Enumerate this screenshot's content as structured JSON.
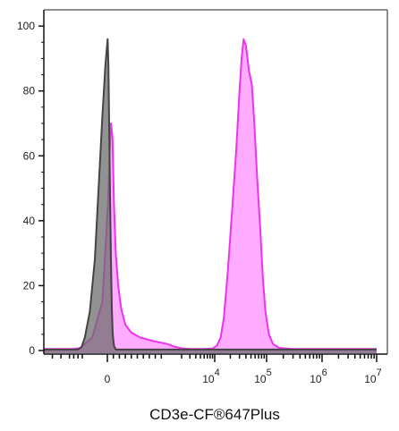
{
  "chart_data": {
    "type": "area",
    "xlabel": "CD3e-CF®647Plus",
    "ylabel": "",
    "title": "",
    "x_scale": "biexponential",
    "xlim": [
      -1000,
      10000000
    ],
    "ylim": [
      0,
      105
    ],
    "y_ticks": [
      0,
      20,
      40,
      60,
      80,
      100
    ],
    "y_tick_labels": [
      "0",
      "20",
      "40",
      "60",
      "80",
      "100"
    ],
    "x_ticks": [
      {
        "value": 0,
        "base": "0",
        "exp": ""
      },
      {
        "value": 10000,
        "base": "10",
        "exp": "4"
      },
      {
        "value": 100000,
        "base": "10",
        "exp": "5"
      },
      {
        "value": 1000000,
        "base": "10",
        "exp": "6"
      },
      {
        "value": 10000000,
        "base": "10",
        "exp": "7"
      }
    ],
    "series": [
      {
        "color": "#ee33ee",
        "fill": "#ff9cff",
        "points": [
          [
            -1000,
            0.5
          ],
          [
            -300,
            0.5
          ],
          [
            -150,
            0.8
          ],
          [
            -60,
            4
          ],
          [
            -20,
            15
          ],
          [
            10,
            45
          ],
          [
            40,
            62
          ],
          [
            60,
            70
          ],
          [
            85,
            66
          ],
          [
            110,
            45
          ],
          [
            140,
            30
          ],
          [
            180,
            20
          ],
          [
            230,
            13
          ],
          [
            300,
            8
          ],
          [
            400,
            5.5
          ],
          [
            550,
            4
          ],
          [
            750,
            3
          ],
          [
            1000,
            2
          ],
          [
            1400,
            1.2
          ],
          [
            2000,
            0.7
          ],
          [
            3000,
            0.5
          ],
          [
            6000,
            0.5
          ],
          [
            9000,
            0.6
          ],
          [
            11000,
            1.5
          ],
          [
            13000,
            4
          ],
          [
            15000,
            10
          ],
          [
            18000,
            25
          ],
          [
            22000,
            45
          ],
          [
            26000,
            62
          ],
          [
            30000,
            80
          ],
          [
            33000,
            90
          ],
          [
            36000,
            96
          ],
          [
            40000,
            94
          ],
          [
            46000,
            86
          ],
          [
            52000,
            82
          ],
          [
            58000,
            70
          ],
          [
            65000,
            55
          ],
          [
            75000,
            38
          ],
          [
            85000,
            22
          ],
          [
            95000,
            12
          ],
          [
            110000,
            5
          ],
          [
            130000,
            2
          ],
          [
            170000,
            0.8
          ],
          [
            300000,
            0.5
          ],
          [
            10000000,
            0.5
          ]
        ]
      },
      {
        "color": "#444444",
        "fill": "#6e6e6e",
        "points": [
          [
            -1000,
            0.3
          ],
          [
            -200,
            0.3
          ],
          [
            -120,
            1
          ],
          [
            -90,
            4
          ],
          [
            -70,
            12
          ],
          [
            -50,
            28
          ],
          [
            -35,
            50
          ],
          [
            -20,
            72
          ],
          [
            -8,
            88
          ],
          [
            5,
            96
          ],
          [
            18,
            88
          ],
          [
            30,
            70
          ],
          [
            45,
            48
          ],
          [
            60,
            28
          ],
          [
            75,
            13
          ],
          [
            90,
            5
          ],
          [
            110,
            1.5
          ],
          [
            140,
            0.3
          ],
          [
            10000000,
            0.3
          ]
        ]
      }
    ]
  }
}
